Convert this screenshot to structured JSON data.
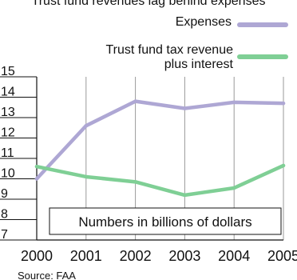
{
  "chart_data": {
    "type": "line",
    "title": "Trust fund revenues lag behind expenses",
    "annotation": "Numbers in billions of dollars",
    "source": "Source: FAA",
    "xlabel": "",
    "ylabel": "",
    "x": [
      "2000",
      "2001",
      "2002",
      "2003",
      "2004",
      "2005"
    ],
    "ylim": [
      7,
      15
    ],
    "yticks": [
      7,
      8,
      9,
      10,
      11,
      12,
      13,
      14,
      15
    ],
    "grid": "vertical",
    "legend_position": "top-right",
    "series": [
      {
        "name": "Expenses",
        "color": "#aea7d4",
        "values": [
          10.0,
          12.6,
          13.8,
          13.45,
          13.75,
          13.7
        ]
      },
      {
        "name": "Trust fund tax revenue plus interest",
        "name_lines": [
          "Trust fund tax revenue",
          "plus interest"
        ],
        "color": "#7fcf95",
        "values": [
          10.6,
          10.1,
          9.85,
          9.2,
          9.55,
          10.65
        ]
      }
    ]
  }
}
